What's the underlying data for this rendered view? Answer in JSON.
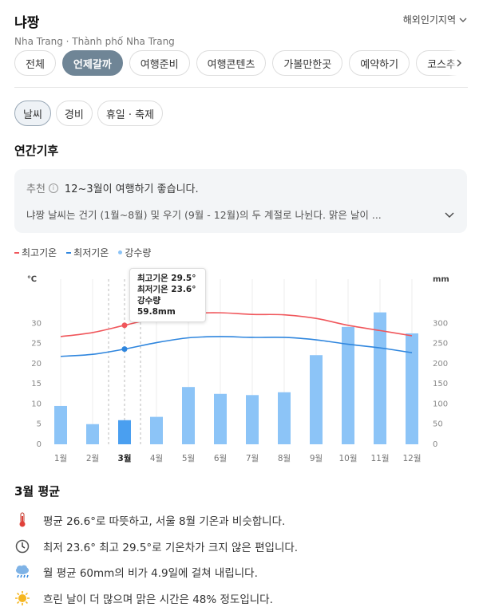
{
  "header": {
    "title": "냐짱",
    "subtitle": "Nha Trang · Thành phố Nha Trang",
    "overseas_label": "해외인기지역"
  },
  "tabs": [
    "전체",
    "언제갈까",
    "여행준비",
    "여행콘텐츠",
    "가볼만한곳",
    "예약하기",
    "코스추천"
  ],
  "active_tab": 1,
  "subtabs": [
    "날씨",
    "경비",
    "휴일 · 축제"
  ],
  "active_subtab": 0,
  "section_title": "연간기후",
  "recommendation": {
    "label": "추천",
    "text": "12~3월이 여행하기 좋습니다.",
    "description": "냐짱 날씨는 건기 (1월~8월) 및 우기 (9월 - 12월)의 두 계절로 나뉜다. 맑은 날이 ..."
  },
  "legend": {
    "high": "최고기온",
    "low": "최저기온",
    "rain": "강수량"
  },
  "colors": {
    "high": "#f0565b",
    "low": "#2f86de",
    "rain": "#8cc4f7",
    "rain_selected": "#4a9ff0",
    "active_tab": "#6f8596"
  },
  "chart_data": {
    "type": "bar",
    "categories": [
      "1월",
      "2월",
      "3월",
      "4월",
      "5월",
      "6월",
      "7월",
      "8월",
      "9월",
      "10월",
      "11월",
      "12월"
    ],
    "series": [
      {
        "name": "최고기온",
        "type": "line",
        "axis": "left",
        "values": [
          26.7,
          27.7,
          29.5,
          31.3,
          32.4,
          32.6,
          32.2,
          32.1,
          31.2,
          29.5,
          28.2,
          26.9
        ]
      },
      {
        "name": "최저기온",
        "type": "line",
        "axis": "left",
        "values": [
          21.8,
          22.3,
          23.6,
          25.2,
          26.4,
          26.7,
          26.5,
          26.5,
          25.9,
          24.8,
          23.9,
          22.7
        ]
      },
      {
        "name": "강수량",
        "type": "bar",
        "axis": "right",
        "values": [
          95,
          50,
          59.8,
          68,
          142,
          125,
          122,
          129,
          221,
          291,
          327,
          275
        ]
      }
    ],
    "left_axis": {
      "unit": "℃",
      "ylim": [
        0,
        35
      ],
      "ticks": [
        0,
        5,
        10,
        15,
        20,
        25,
        30
      ]
    },
    "right_axis": {
      "unit": "mm",
      "ylim": [
        0,
        350
      ],
      "ticks": [
        0,
        50,
        100,
        150,
        200,
        250,
        300
      ]
    },
    "selected_index": 2,
    "tooltip": {
      "high": "최고기온 29.5°",
      "low": "최저기온 23.6°",
      "rain": "강수량 59.8mm"
    }
  },
  "monthly_average": {
    "title": "3월 평균",
    "items": [
      {
        "icon": "thermometer-icon",
        "text": "평균 26.6°로 따뜻하고, 서울 8월 기온과 비슷합니다."
      },
      {
        "icon": "clock-icon",
        "text": "최저 23.6° 최고 29.5°로 기온차가 크지 않은 편입니다."
      },
      {
        "icon": "rain-cloud-icon",
        "text": "월 평균 60mm의 비가 4.9일에 걸쳐 내립니다."
      },
      {
        "icon": "sun-icon",
        "text": "흐린 날이 더 많으며 맑은 시간은 48% 정도입니다."
      }
    ]
  }
}
